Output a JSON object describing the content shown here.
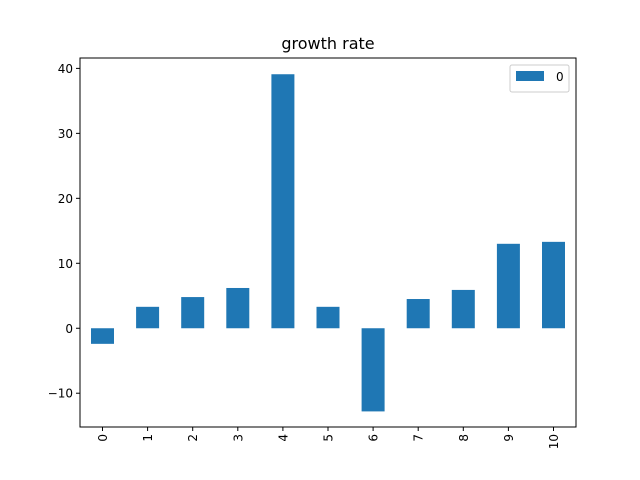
{
  "chart_data": {
    "type": "bar",
    "title": "growth rate",
    "xlabel": "",
    "ylabel": "",
    "categories": [
      "0",
      "1",
      "2",
      "3",
      "4",
      "5",
      "6",
      "7",
      "8",
      "9",
      "10"
    ],
    "series": [
      {
        "name": "0",
        "values": [
          -2.4,
          3.3,
          4.8,
          6.2,
          39.1,
          3.3,
          -12.8,
          4.5,
          5.9,
          13.0,
          13.3
        ]
      }
    ],
    "ylim": [
      -15.2,
      41.6
    ],
    "yticks": [
      -10,
      0,
      10,
      20,
      30,
      40
    ],
    "ytick_labels": [
      "−10",
      "0",
      "10",
      "20",
      "30",
      "40"
    ],
    "grid": false,
    "legend_position": "top-right",
    "x_tick_rotation": "vertical"
  },
  "colors": {
    "bar": "#1f77b4",
    "axes": "#000000",
    "background": "#ffffff",
    "legend_border": "#cccccc"
  }
}
